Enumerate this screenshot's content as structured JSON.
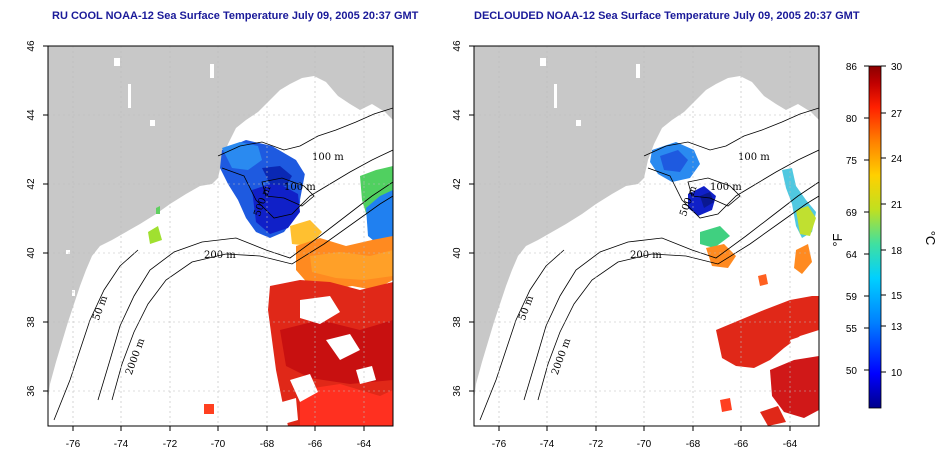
{
  "titles": {
    "left": "RU COOL NOAA-12 Sea Surface Temperature July 09, 2005 20:37 GMT",
    "right": "DECLOUDED NOAA-12 Sea Surface Temperature July 09, 2005 20:37 GMT"
  },
  "axes": {
    "x_ticks": [
      "-76",
      "-74",
      "-72",
      "-70",
      "-68",
      "-66",
      "-64"
    ],
    "y_ticks": [
      "46",
      "44",
      "42",
      "40",
      "38",
      "36"
    ],
    "x_range": [
      -77.2,
      -63.0
    ],
    "y_range": [
      35.0,
      46.0
    ]
  },
  "depth_labels": {
    "left": [
      "100 m",
      "100 m",
      "500 m",
      "200 m",
      "50 m",
      "2000 m"
    ],
    "right": [
      "100 m",
      "100 m",
      "500 m",
      "200 m",
      "50 m",
      "2000 m"
    ]
  },
  "colorbar": {
    "fahrenheit_label": "°F",
    "celsius_label": "°C",
    "fahrenheit_ticks": [
      "86",
      "80",
      "75",
      "69",
      "64",
      "59",
      "55",
      "50"
    ],
    "celsius_ticks": [
      "30",
      "27",
      "24",
      "21",
      "18",
      "15",
      "13",
      "10"
    ],
    "colors": [
      "#00008b",
      "#0000ff",
      "#0080ff",
      "#00d0ff",
      "#40e0a0",
      "#c0e020",
      "#ffd000",
      "#ff8000",
      "#ff2000",
      "#c00000",
      "#8b0000"
    ]
  },
  "colors": {
    "land": "#c8c8c8",
    "ocean": "#ffffff",
    "title": "#1a1a99",
    "contour": "#000000"
  }
}
